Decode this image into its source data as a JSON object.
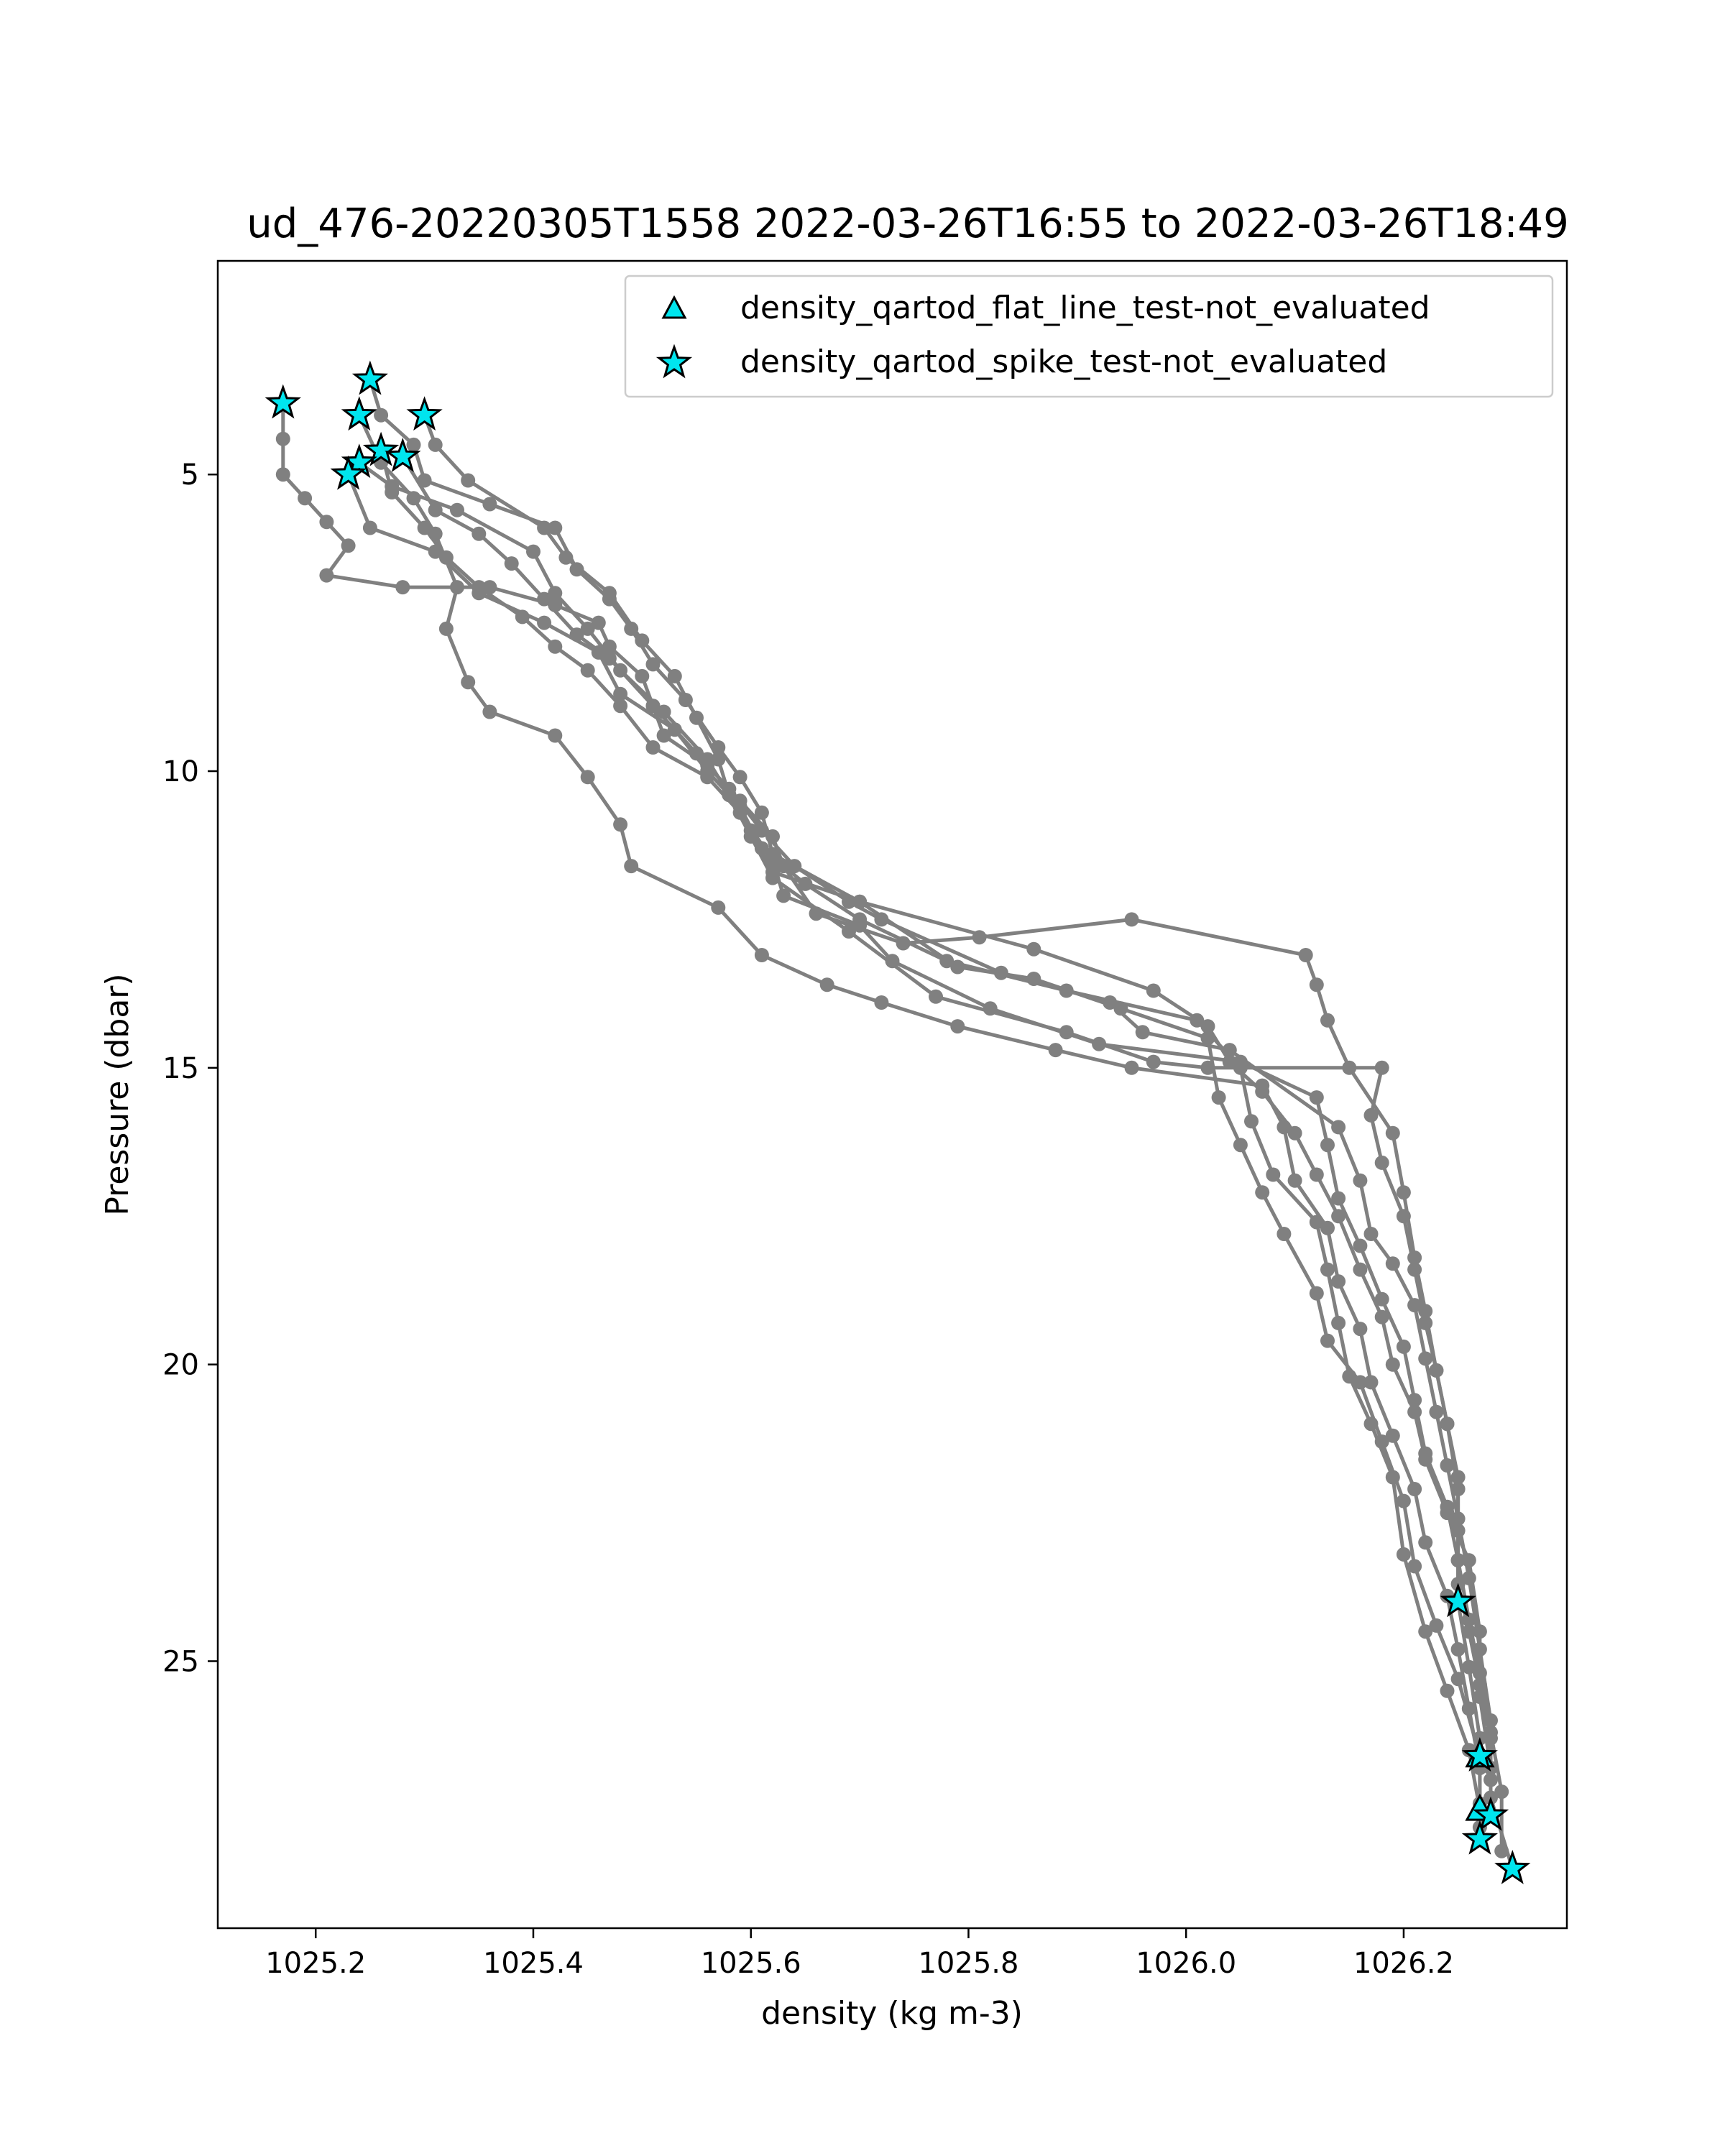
{
  "chart_data": {
    "type": "scatter",
    "title": "ud_476-20220305T1558 2022-03-26T16:55 to 2022-03-26T18:49",
    "xlabel": "density (kg m-3)",
    "ylabel": "Pressure (dbar)",
    "xlim": [
      1025.11,
      1026.35
    ],
    "ylim": [
      29.5,
      1.4
    ],
    "y_inverted": true,
    "xticks": [
      {
        "value": 1025.2,
        "label": "1025.2"
      },
      {
        "value": 1025.4,
        "label": "1025.4"
      },
      {
        "value": 1025.6,
        "label": "1025.6"
      },
      {
        "value": 1025.8,
        "label": "1025.8"
      },
      {
        "value": 1026.0,
        "label": "1026.0"
      },
      {
        "value": 1026.2,
        "label": "1026.2"
      }
    ],
    "yticks": [
      {
        "value": 5,
        "label": "5"
      },
      {
        "value": 10,
        "label": "10"
      },
      {
        "value": 15,
        "label": "15"
      },
      {
        "value": 20,
        "label": "20"
      },
      {
        "value": 25,
        "label": "25"
      }
    ],
    "grid": false,
    "legend_position": "top-right",
    "profile_color": "#808080",
    "profiles": [
      [
        [
          1025.17,
          3.8
        ],
        [
          1025.17,
          4.4
        ],
        [
          1025.17,
          5.0
        ],
        [
          1025.19,
          5.4
        ],
        [
          1025.21,
          5.8
        ],
        [
          1025.23,
          6.2
        ],
        [
          1025.21,
          6.7
        ],
        [
          1025.28,
          6.9
        ],
        [
          1025.36,
          6.9
        ],
        [
          1025.42,
          7.2
        ],
        [
          1025.46,
          7.5
        ],
        [
          1025.47,
          7.9
        ],
        [
          1025.5,
          8.4
        ],
        [
          1025.51,
          8.9
        ],
        [
          1025.52,
          9.4
        ],
        [
          1025.56,
          9.9
        ],
        [
          1025.59,
          10.5
        ],
        [
          1025.62,
          11.1
        ],
        [
          1025.63,
          11.6
        ],
        [
          1025.66,
          12.4
        ],
        [
          1025.74,
          12.9
        ],
        [
          1025.81,
          12.8
        ],
        [
          1025.95,
          12.5
        ],
        [
          1026.11,
          13.1
        ],
        [
          1026.12,
          13.6
        ],
        [
          1026.13,
          14.2
        ],
        [
          1026.15,
          15.0
        ],
        [
          1026.19,
          16.1
        ],
        [
          1026.2,
          17.1
        ],
        [
          1026.21,
          18.2
        ],
        [
          1026.22,
          19.1
        ],
        [
          1026.23,
          20.1
        ],
        [
          1026.24,
          21.0
        ],
        [
          1026.25,
          22.1
        ],
        [
          1026.25,
          23.3
        ],
        [
          1026.25,
          24.0
        ],
        [
          1026.26,
          25.1
        ],
        [
          1026.27,
          26.3
        ],
        [
          1026.27,
          26.6
        ]
      ],
      [
        [
          1025.23,
          5.0
        ],
        [
          1025.25,
          5.9
        ],
        [
          1025.31,
          6.3
        ],
        [
          1025.35,
          7.0
        ],
        [
          1025.41,
          7.5
        ],
        [
          1025.46,
          8.0
        ],
        [
          1025.48,
          8.7
        ],
        [
          1025.53,
          9.3
        ],
        [
          1025.56,
          10.0
        ],
        [
          1025.59,
          10.6
        ],
        [
          1025.61,
          11.3
        ],
        [
          1025.65,
          11.9
        ],
        [
          1025.7,
          12.5
        ],
        [
          1025.78,
          13.2
        ],
        [
          1025.89,
          13.7
        ],
        [
          1026.01,
          14.2
        ],
        [
          1026.05,
          15.0
        ],
        [
          1026.06,
          15.9
        ],
        [
          1026.08,
          16.8
        ],
        [
          1026.12,
          17.6
        ],
        [
          1026.13,
          18.4
        ],
        [
          1026.14,
          19.3
        ],
        [
          1026.15,
          20.2
        ],
        [
          1026.17,
          21.0
        ],
        [
          1026.19,
          21.9
        ],
        [
          1026.2,
          23.2
        ],
        [
          1026.22,
          24.5
        ],
        [
          1026.24,
          25.5
        ],
        [
          1026.26,
          26.5
        ],
        [
          1026.27,
          27.5
        ]
      ],
      [
        [
          1025.24,
          4.8
        ],
        [
          1025.27,
          5.2
        ],
        [
          1025.33,
          5.6
        ],
        [
          1025.4,
          6.3
        ],
        [
          1025.42,
          7.0
        ],
        [
          1025.45,
          7.6
        ],
        [
          1025.48,
          8.3
        ],
        [
          1025.52,
          9.0
        ],
        [
          1025.56,
          9.8
        ],
        [
          1025.58,
          10.4
        ],
        [
          1025.6,
          11.0
        ],
        [
          1025.62,
          11.7
        ],
        [
          1025.7,
          12.2
        ],
        [
          1025.79,
          13.3
        ],
        [
          1025.86,
          13.5
        ],
        [
          1025.94,
          14.0
        ],
        [
          1026.02,
          14.5
        ],
        [
          1026.03,
          15.5
        ],
        [
          1026.05,
          16.3
        ],
        [
          1026.07,
          17.1
        ],
        [
          1026.09,
          17.8
        ],
        [
          1026.12,
          18.8
        ],
        [
          1026.13,
          19.6
        ],
        [
          1026.16,
          20.3
        ],
        [
          1026.18,
          21.3
        ],
        [
          1026.2,
          22.3
        ],
        [
          1026.21,
          23.4
        ],
        [
          1026.23,
          24.4
        ],
        [
          1026.25,
          25.3
        ],
        [
          1026.27,
          26.6
        ],
        [
          1026.27,
          27.4
        ],
        [
          1026.27,
          28.0
        ]
      ],
      [
        [
          1025.25,
          3.4
        ],
        [
          1025.26,
          4.0
        ],
        [
          1025.29,
          4.5
        ],
        [
          1025.3,
          5.1
        ],
        [
          1025.36,
          5.5
        ],
        [
          1025.42,
          5.9
        ],
        [
          1025.44,
          6.6
        ],
        [
          1025.47,
          7.1
        ],
        [
          1025.49,
          7.6
        ],
        [
          1025.51,
          8.2
        ],
        [
          1025.54,
          8.8
        ],
        [
          1025.57,
          9.6
        ],
        [
          1025.59,
          10.1
        ],
        [
          1025.61,
          10.7
        ],
        [
          1025.62,
          11.4
        ],
        [
          1025.7,
          12.2
        ],
        [
          1025.86,
          13.0
        ],
        [
          1025.97,
          13.7
        ],
        [
          1026.02,
          14.3
        ],
        [
          1026.04,
          14.9
        ],
        [
          1026.07,
          15.4
        ],
        [
          1026.1,
          16.1
        ],
        [
          1026.12,
          16.8
        ],
        [
          1026.14,
          17.5
        ],
        [
          1026.16,
          18.4
        ],
        [
          1026.18,
          19.2
        ],
        [
          1026.19,
          20.0
        ],
        [
          1026.21,
          20.8
        ],
        [
          1026.22,
          21.6
        ],
        [
          1026.24,
          22.5
        ],
        [
          1026.26,
          23.3
        ],
        [
          1026.27,
          24.5
        ],
        [
          1026.27,
          25.6
        ],
        [
          1026.28,
          26.8
        ],
        [
          1026.28,
          27.6
        ]
      ],
      [
        [
          1025.3,
          4.0
        ],
        [
          1025.31,
          4.5
        ],
        [
          1025.34,
          5.1
        ],
        [
          1025.41,
          5.9
        ],
        [
          1025.43,
          6.4
        ],
        [
          1025.47,
          7.0
        ],
        [
          1025.5,
          7.8
        ],
        [
          1025.53,
          8.4
        ],
        [
          1025.55,
          9.1
        ],
        [
          1025.57,
          9.8
        ],
        [
          1025.58,
          10.4
        ],
        [
          1025.6,
          11.1
        ],
        [
          1025.62,
          11.8
        ],
        [
          1025.69,
          12.7
        ],
        [
          1025.77,
          13.8
        ],
        [
          1025.89,
          14.4
        ],
        [
          1025.97,
          14.9
        ],
        [
          1026.02,
          15.0
        ],
        [
          1026.18,
          15.0
        ],
        [
          1026.17,
          15.8
        ],
        [
          1026.18,
          16.6
        ],
        [
          1026.2,
          17.5
        ],
        [
          1026.21,
          18.4
        ],
        [
          1026.22,
          19.3
        ],
        [
          1026.23,
          20.1
        ],
        [
          1026.24,
          21.0
        ],
        [
          1026.25,
          21.9
        ],
        [
          1026.25,
          22.8
        ],
        [
          1026.25,
          23.7
        ],
        [
          1026.26,
          24.5
        ],
        [
          1026.27,
          25.4
        ],
        [
          1026.28,
          26.3
        ],
        [
          1026.28,
          27.3
        ],
        [
          1026.3,
          28.5
        ]
      ],
      [
        [
          1025.28,
          4.7
        ],
        [
          1025.31,
          5.6
        ],
        [
          1025.35,
          6.0
        ],
        [
          1025.38,
          6.5
        ],
        [
          1025.41,
          7.1
        ],
        [
          1025.44,
          7.7
        ],
        [
          1025.47,
          8.1
        ],
        [
          1025.51,
          8.9
        ],
        [
          1025.55,
          9.7
        ],
        [
          1025.58,
          10.3
        ],
        [
          1025.61,
          11.0
        ],
        [
          1025.64,
          11.6
        ],
        [
          1025.69,
          12.2
        ],
        [
          1025.72,
          12.5
        ],
        [
          1025.83,
          13.4
        ],
        [
          1025.93,
          13.9
        ],
        [
          1025.96,
          14.4
        ],
        [
          1026.04,
          14.7
        ],
        [
          1026.14,
          16.0
        ],
        [
          1026.16,
          16.9
        ],
        [
          1026.17,
          17.8
        ],
        [
          1026.19,
          18.3
        ],
        [
          1026.21,
          19.0
        ],
        [
          1026.22,
          19.9
        ],
        [
          1026.23,
          20.8
        ],
        [
          1026.24,
          21.7
        ],
        [
          1026.25,
          22.6
        ],
        [
          1026.26,
          23.6
        ],
        [
          1026.27,
          24.8
        ],
        [
          1026.28,
          26.0
        ],
        [
          1026.28,
          27.0
        ]
      ],
      [
        [
          1025.26,
          4.6
        ],
        [
          1025.27,
          5.3
        ],
        [
          1025.3,
          5.9
        ],
        [
          1025.32,
          6.4
        ],
        [
          1025.35,
          6.9
        ],
        [
          1025.39,
          7.4
        ],
        [
          1025.42,
          7.9
        ],
        [
          1025.45,
          8.3
        ],
        [
          1025.48,
          8.9
        ],
        [
          1025.51,
          9.6
        ],
        [
          1025.56,
          10.1
        ],
        [
          1025.59,
          10.7
        ],
        [
          1025.62,
          11.5
        ],
        [
          1025.63,
          12.1
        ],
        [
          1025.7,
          12.6
        ],
        [
          1025.73,
          13.2
        ],
        [
          1025.82,
          14.0
        ],
        [
          1025.92,
          14.6
        ],
        [
          1026.05,
          14.9
        ],
        [
          1026.12,
          15.5
        ],
        [
          1026.13,
          16.3
        ],
        [
          1026.14,
          17.2
        ],
        [
          1026.16,
          18.0
        ],
        [
          1026.18,
          18.9
        ],
        [
          1026.2,
          19.7
        ],
        [
          1026.21,
          20.6
        ],
        [
          1026.22,
          21.5
        ],
        [
          1026.24,
          22.4
        ],
        [
          1026.25,
          23.3
        ],
        [
          1026.26,
          24.3
        ],
        [
          1026.27,
          25.2
        ],
        [
          1026.28,
          26.2
        ],
        [
          1026.29,
          27.2
        ],
        [
          1026.29,
          28.2
        ]
      ],
      [
        [
          1025.24,
          4.0
        ],
        [
          1025.26,
          4.8
        ],
        [
          1025.29,
          5.4
        ],
        [
          1025.31,
          6.0
        ],
        [
          1025.33,
          6.9
        ],
        [
          1025.32,
          7.6
        ],
        [
          1025.34,
          8.5
        ],
        [
          1025.36,
          9.0
        ],
        [
          1025.42,
          9.4
        ],
        [
          1025.45,
          10.1
        ],
        [
          1025.48,
          10.9
        ],
        [
          1025.49,
          11.6
        ],
        [
          1025.57,
          12.3
        ],
        [
          1025.61,
          13.1
        ],
        [
          1025.67,
          13.6
        ],
        [
          1025.72,
          13.9
        ],
        [
          1025.79,
          14.3
        ],
        [
          1025.88,
          14.7
        ],
        [
          1025.95,
          15.0
        ],
        [
          1026.07,
          15.3
        ],
        [
          1026.09,
          16.0
        ],
        [
          1026.1,
          16.9
        ],
        [
          1026.13,
          17.7
        ],
        [
          1026.14,
          18.6
        ],
        [
          1026.16,
          19.4
        ],
        [
          1026.17,
          20.3
        ],
        [
          1026.19,
          21.2
        ],
        [
          1026.21,
          22.1
        ],
        [
          1026.22,
          23.0
        ],
        [
          1026.24,
          23.9
        ],
        [
          1026.25,
          24.8
        ],
        [
          1026.26,
          25.8
        ],
        [
          1026.27,
          26.8
        ],
        [
          1026.27,
          27.8
        ]
      ]
    ],
    "flat_line_test_points": [
      [
        1026.27,
        26.6
      ],
      [
        1026.27,
        27.5
      ]
    ],
    "spike_test_points": [
      [
        1025.17,
        3.8
      ],
      [
        1025.25,
        3.4
      ],
      [
        1025.24,
        4.0
      ],
      [
        1025.3,
        4.0
      ],
      [
        1025.26,
        4.6
      ],
      [
        1025.28,
        4.7
      ],
      [
        1025.24,
        4.8
      ],
      [
        1025.23,
        5.0
      ],
      [
        1026.25,
        24.0
      ],
      [
        1026.27,
        26.6
      ],
      [
        1026.28,
        27.6
      ],
      [
        1026.27,
        28.0
      ],
      [
        1026.3,
        28.5
      ]
    ],
    "marker_color": "#00e5ee",
    "legend": [
      {
        "label": "density_qartod_flat_line_test-not_evaluated",
        "marker": "triangle"
      },
      {
        "label": "density_qartod_spike_test-not_evaluated",
        "marker": "star"
      }
    ]
  }
}
